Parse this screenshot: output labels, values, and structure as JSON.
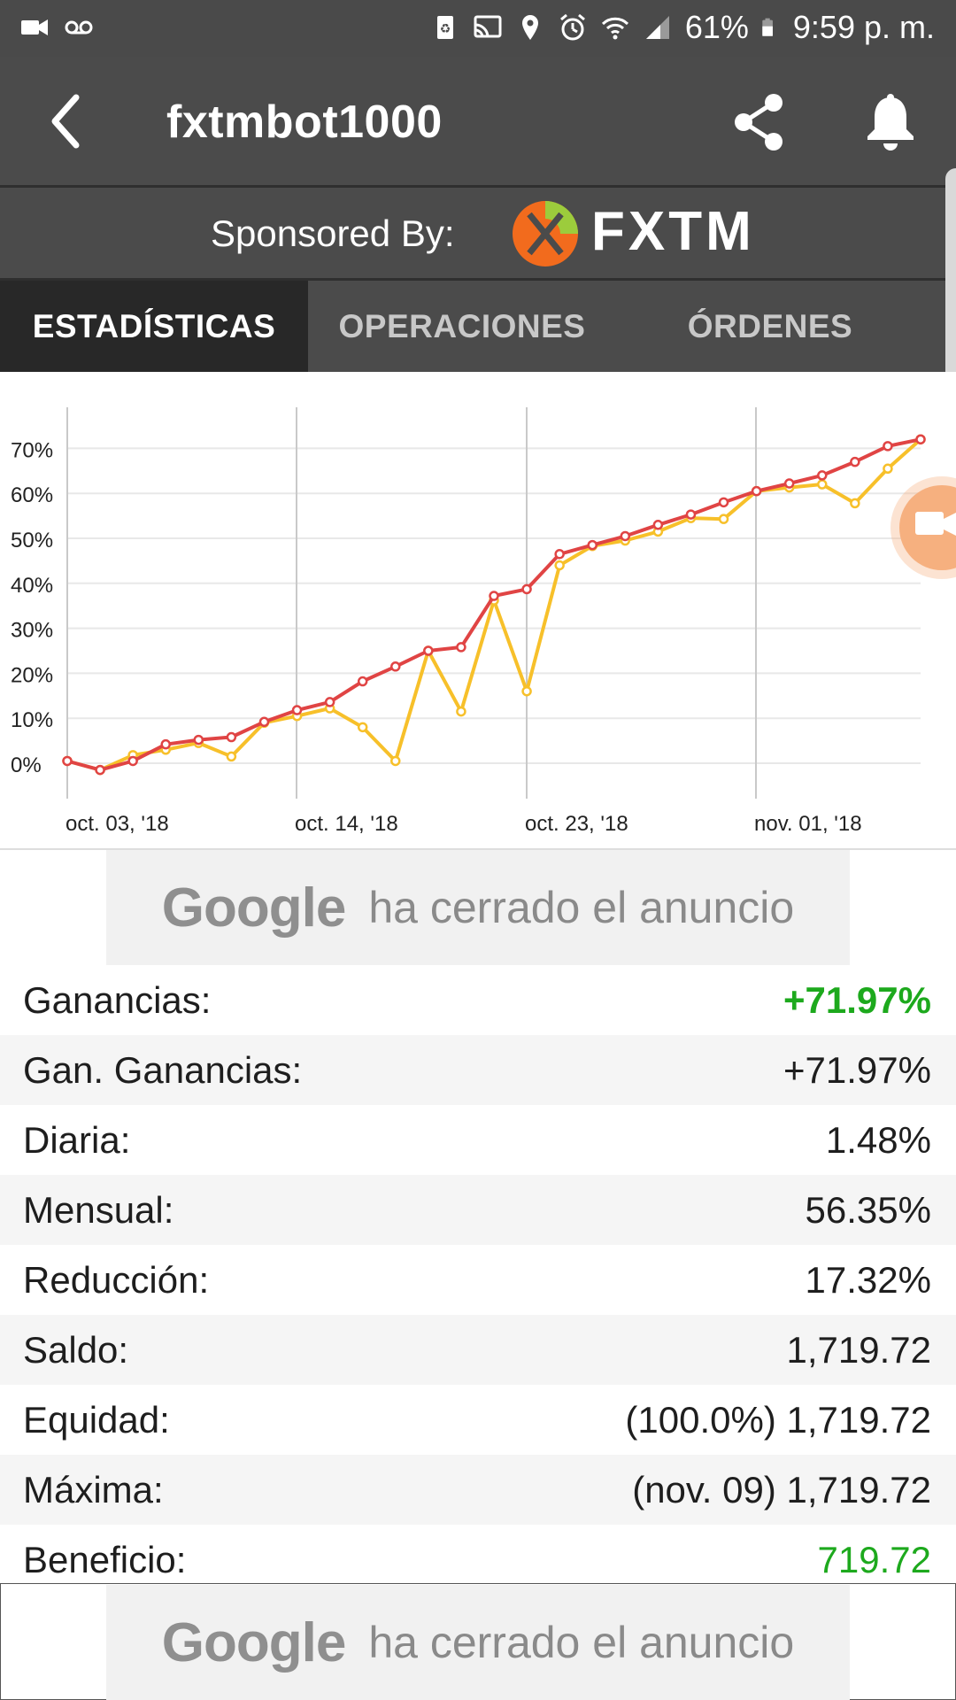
{
  "status_bar": {
    "battery": "61%",
    "time": "9:59 p. m.",
    "icons": [
      "video-icon",
      "voicemail-icon",
      "battery-saver-icon",
      "cast-icon",
      "location-icon",
      "alarm-icon",
      "wifi-icon",
      "signal-icon",
      "battery-icon"
    ]
  },
  "app_bar": {
    "title": "fxtmbot1000",
    "back_icon": "back-arrow-icon",
    "share_icon": "share-icon",
    "bell_icon": "bell-icon"
  },
  "sponsor": {
    "label": "Sponsored By:",
    "brand": "FXTM",
    "logo_colors": [
      "#f26b1d",
      "#9ccc3c"
    ]
  },
  "tabs": [
    {
      "label": "ESTADÍSTICAS",
      "active": true
    },
    {
      "label": "OPERACIONES",
      "active": false
    },
    {
      "label": "ÓRDENES",
      "active": false
    }
  ],
  "chart_data": {
    "type": "line",
    "x_ticks": [
      "oct. 03, '18",
      "oct. 14, '18",
      "oct. 23, '18",
      "nov. 01, '18"
    ],
    "y_ticks": [
      "0%",
      "10%",
      "20%",
      "30%",
      "40%",
      "50%",
      "60%",
      "70%"
    ],
    "ylim": [
      -8,
      80
    ],
    "grid": true,
    "series": [
      {
        "color": "#e04444",
        "values": [
          0.5,
          -1.5,
          0.5,
          4.2,
          5.2,
          5.8,
          9.2,
          11.8,
          13.6,
          18.2,
          21.5,
          25.0,
          25.8,
          37.2,
          38.7,
          46.5,
          48.5,
          50.5,
          53.0,
          55.3,
          58.0,
          60.5,
          62.2,
          64.0,
          67.0,
          70.5,
          72.0
        ]
      },
      {
        "color": "#f7c02a",
        "values": [
          0.5,
          -1.5,
          1.8,
          3.0,
          4.5,
          1.5,
          9.0,
          10.5,
          12.2,
          8.0,
          0.5,
          25.0,
          11.5,
          36.2,
          16.0,
          44.0,
          48.3,
          49.5,
          51.5,
          54.5,
          54.3,
          60.5,
          61.3,
          62.0,
          57.8,
          65.5,
          72.0
        ]
      }
    ]
  },
  "ad": {
    "brand": "Google",
    "text": "ha cerrado el anuncio"
  },
  "stats": [
    {
      "label": "Ganancias:",
      "value": "+71.97%",
      "color": "#1da91d",
      "bold": true
    },
    {
      "label": "Gan. Ganancias:",
      "value": "+71.97%"
    },
    {
      "label": "Diaria:",
      "value": "1.48%"
    },
    {
      "label": "Mensual:",
      "value": "56.35%"
    },
    {
      "label": "Reducción:",
      "value": "17.32%"
    },
    {
      "label": "Saldo:",
      "value": "1,719.72"
    },
    {
      "label": "Equidad:",
      "value": "(100.0%) 1,719.72"
    },
    {
      "label": "Máxima:",
      "value": "(nov. 09) 1,719.72"
    },
    {
      "label": "Beneficio:",
      "value": "719.72",
      "color": "#1da91d"
    }
  ]
}
